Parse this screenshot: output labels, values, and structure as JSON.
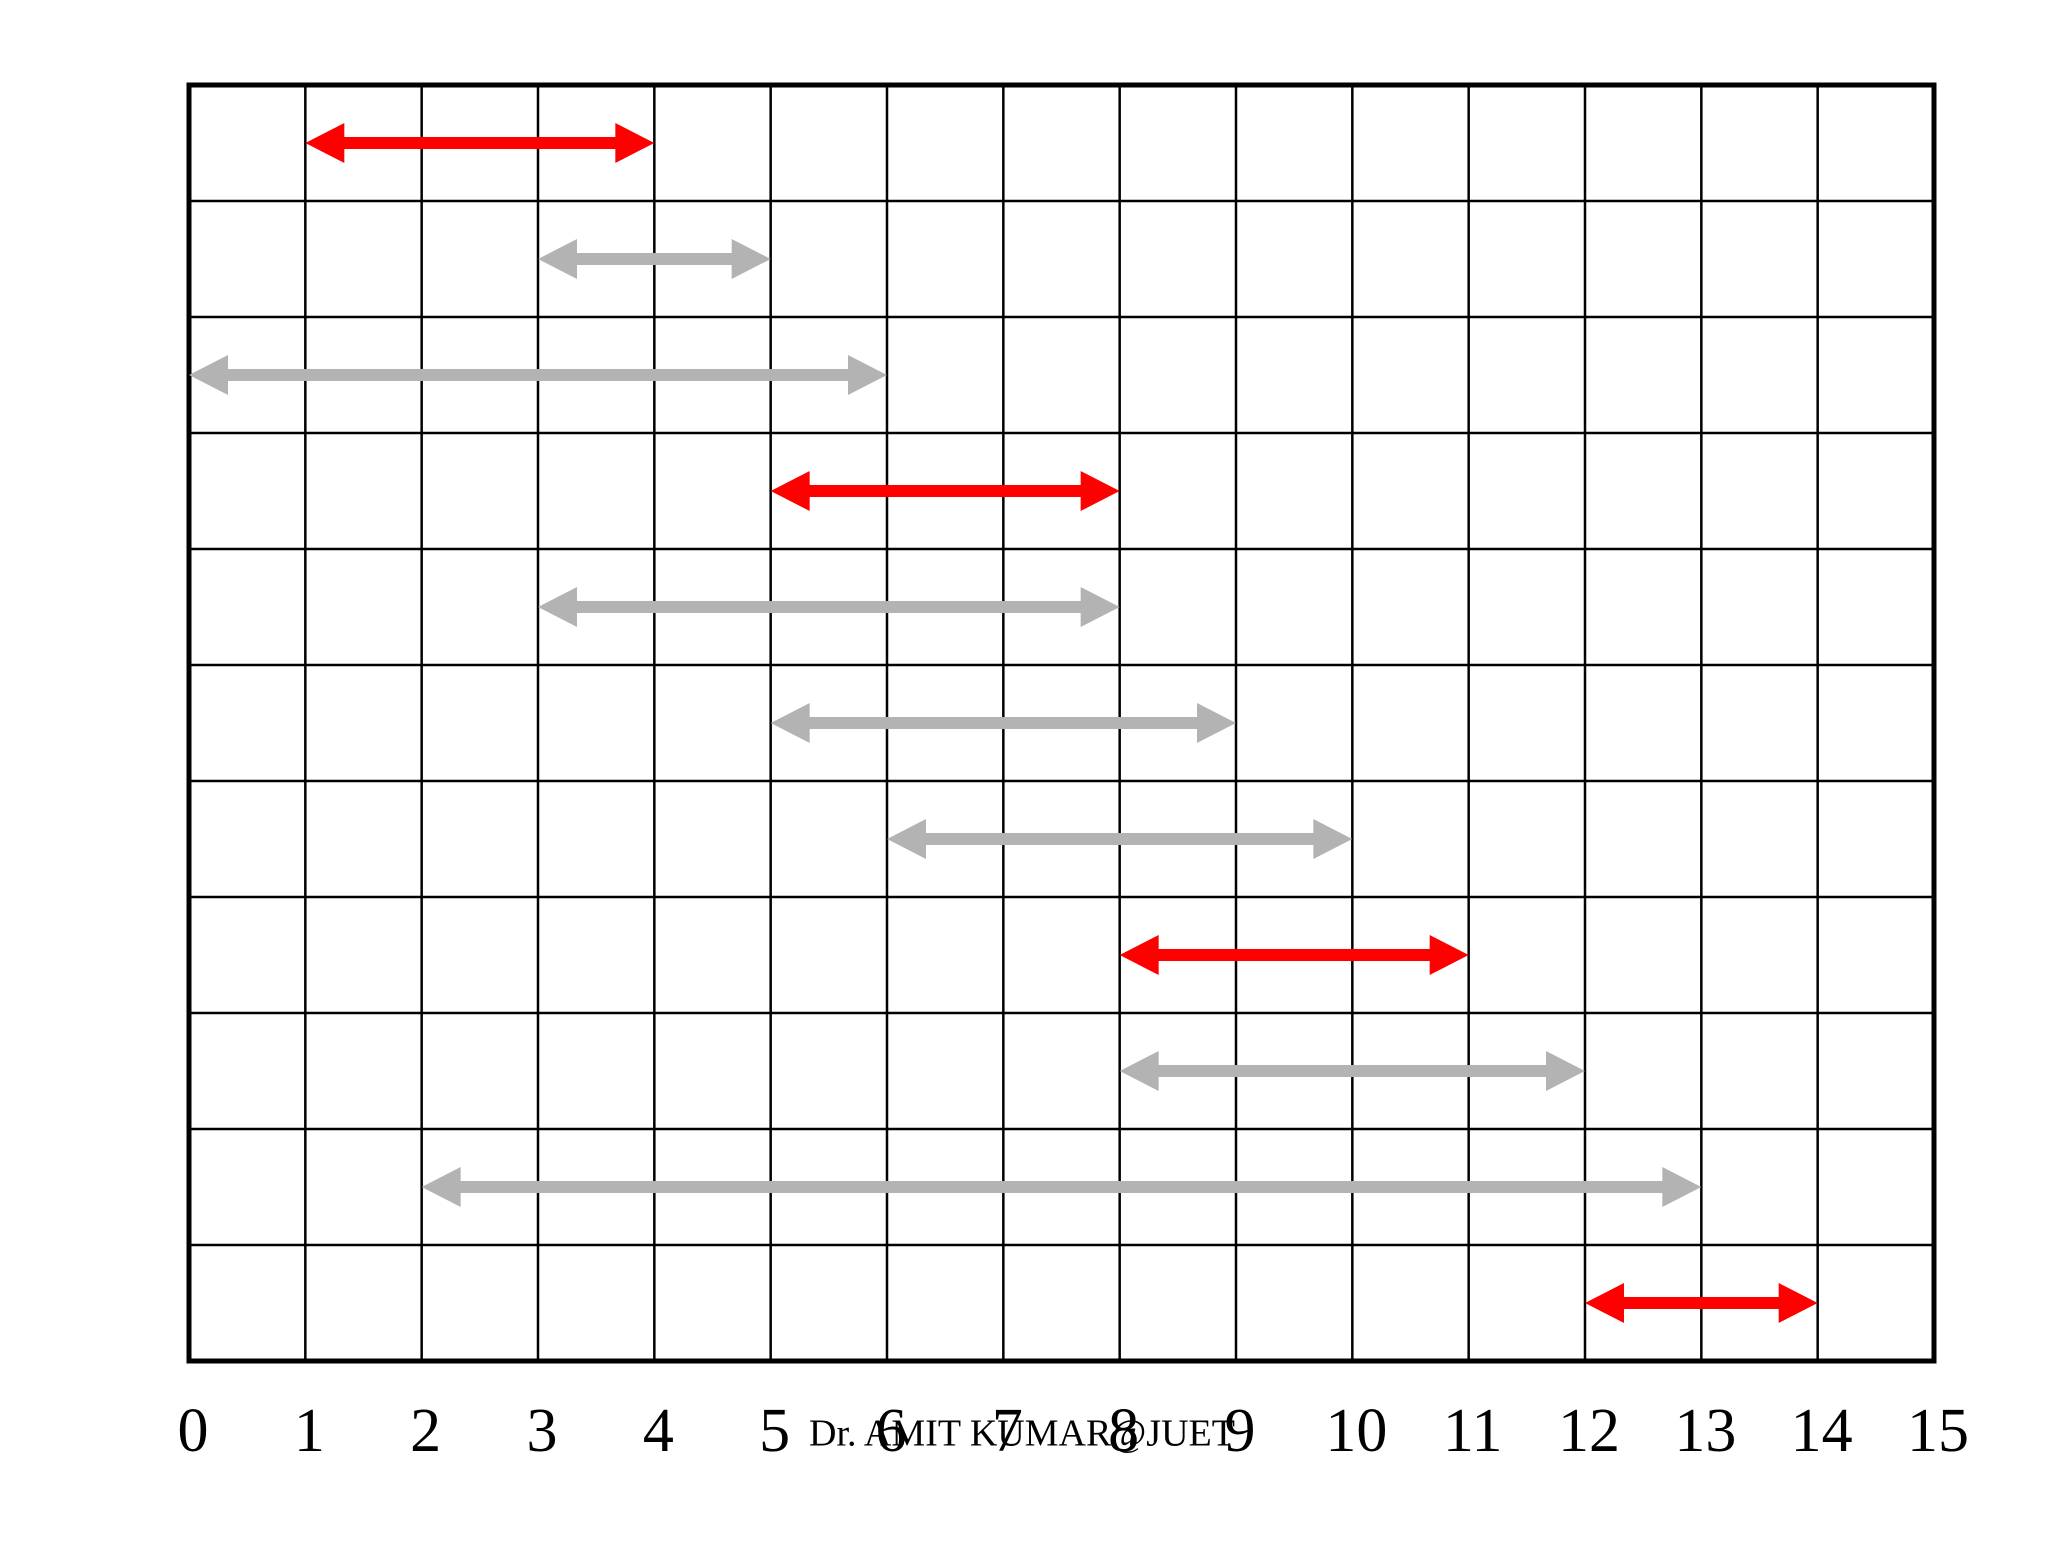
{
  "chart_data": {
    "type": "interval",
    "starts": [
      1,
      3,
      0,
      5,
      3,
      5,
      6,
      8,
      8,
      2,
      12
    ],
    "ends": [
      4,
      5,
      6,
      8,
      8,
      9,
      10,
      11,
      12,
      13,
      14
    ],
    "colors": [
      "#ff0000",
      "#b3b3b3",
      "#b3b3b3",
      "#ff0000",
      "#b3b3b3",
      "#b3b3b3",
      "#b3b3b3",
      "#ff0000",
      "#b3b3b3",
      "#b3b3b3",
      "#ff0000"
    ],
    "xlim": [
      0,
      15
    ],
    "xticks": [
      0,
      1,
      2,
      3,
      4,
      5,
      6,
      7,
      8,
      9,
      10,
      11,
      12,
      13,
      14,
      15
    ],
    "grid": true,
    "footer": "Dr. AMIT KUMAR@JUET"
  }
}
